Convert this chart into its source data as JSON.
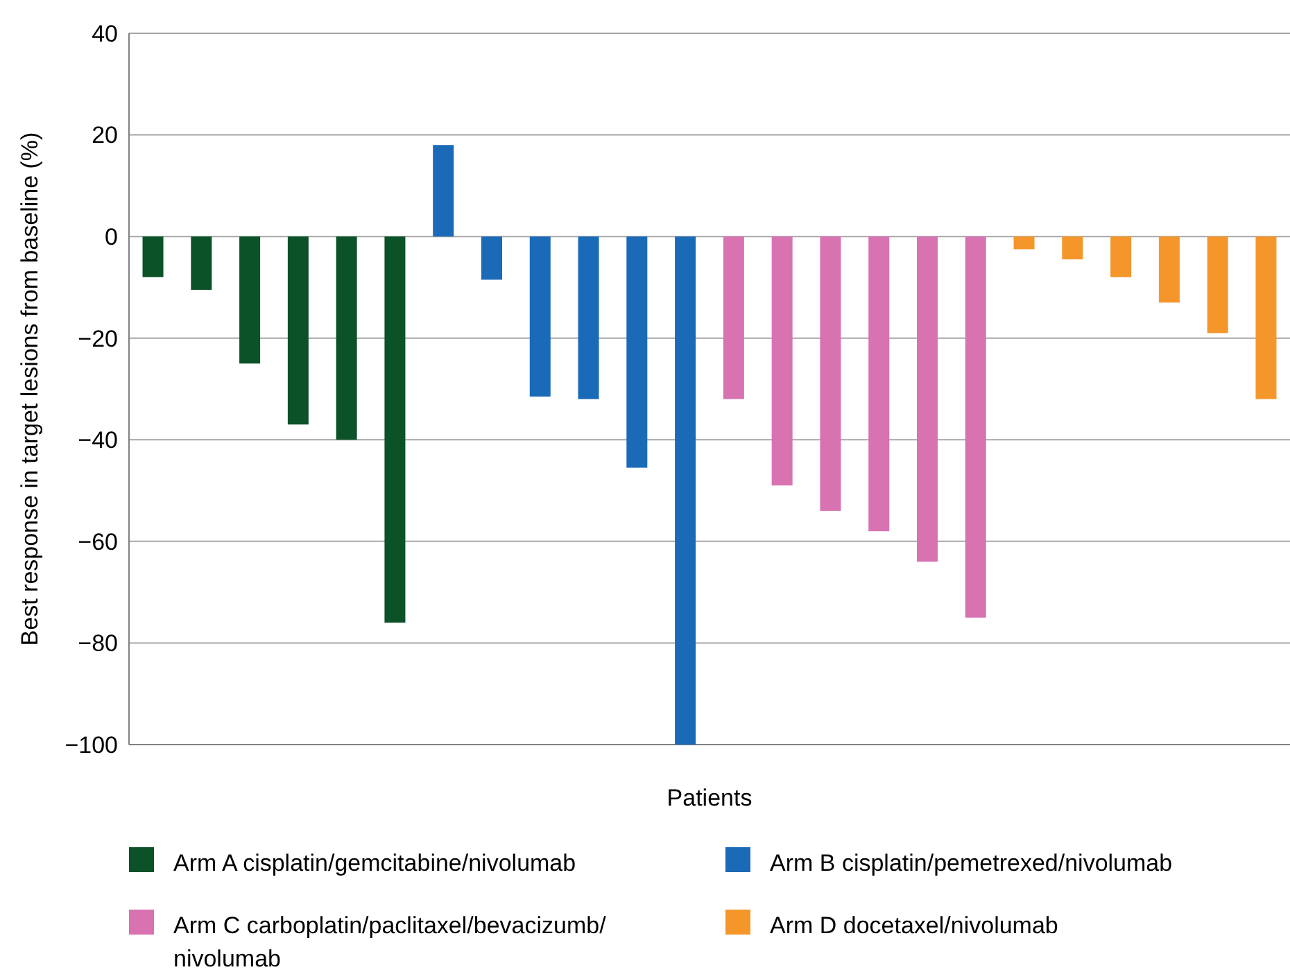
{
  "chart_data": {
    "type": "bar",
    "xlabel": "Patients",
    "ylabel": "Best response in target lesions from baseline (%)",
    "categories": [
      null,
      null,
      null,
      null,
      null,
      null,
      null,
      null,
      null,
      null,
      null,
      null,
      null,
      null,
      null,
      null,
      null,
      null,
      null,
      null,
      null,
      null,
      null,
      null
    ],
    "series": [
      {
        "name": "Arm A cisplatin/gemcitabine/nivolumab",
        "color": "#0b5229",
        "values": [
          -8,
          -10.5,
          -25,
          -37,
          -40,
          -76,
          null,
          null,
          null,
          null,
          null,
          null,
          null,
          null,
          null,
          null,
          null,
          null,
          null,
          null,
          null,
          null,
          null,
          null
        ]
      },
      {
        "name": "Arm B cisplatin/pemetrexed/nivolumab",
        "color": "#1a6ab7",
        "values": [
          null,
          null,
          null,
          null,
          null,
          null,
          18,
          -8.5,
          -31.5,
          -32,
          -45.5,
          -100,
          null,
          null,
          null,
          null,
          null,
          null,
          null,
          null,
          null,
          null,
          null,
          null
        ]
      },
      {
        "name": "Arm C carboplatin/paclitaxel/bevacizumb/nivolumab",
        "color": "#d872b1",
        "values": [
          null,
          null,
          null,
          null,
          null,
          null,
          null,
          null,
          null,
          null,
          null,
          null,
          -32,
          -49,
          -54,
          -58,
          -64,
          -75,
          null,
          null,
          null,
          null,
          null,
          null
        ]
      },
      {
        "name": "Arm D docetaxel/nivolumab",
        "color": "#f5962a",
        "values": [
          null,
          null,
          null,
          null,
          null,
          null,
          null,
          null,
          null,
          null,
          null,
          null,
          null,
          null,
          null,
          null,
          null,
          null,
          -2.5,
          -4.5,
          -8,
          -13,
          -19,
          -32
        ]
      }
    ],
    "ylim": [
      -100,
      40
    ],
    "yticks": [
      {
        "value": -100,
        "label": "−100"
      },
      {
        "value": -80,
        "label": "−80"
      },
      {
        "value": -60,
        "label": "−60"
      },
      {
        "value": -40,
        "label": "−40"
      },
      {
        "value": -20,
        "label": "−20"
      },
      0,
      20,
      40
    ],
    "grid": "y",
    "legend": "bottom"
  }
}
